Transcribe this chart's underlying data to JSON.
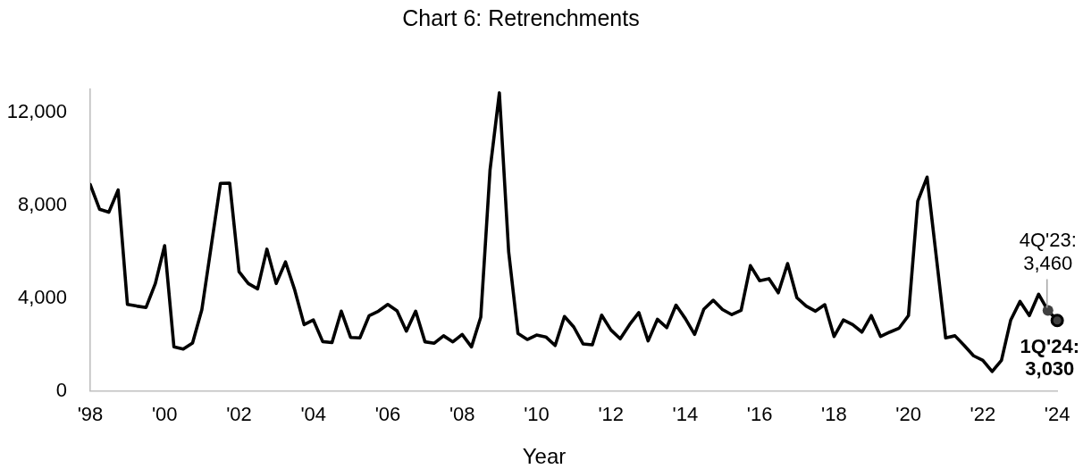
{
  "chart_data": {
    "type": "line",
    "title": "Chart 6: Retrenchments",
    "xlabel": "Year",
    "x": [
      1998,
      1998.25,
      1998.5,
      1998.75,
      1999,
      1999.25,
      1999.5,
      1999.75,
      2000,
      2000.25,
      2000.5,
      2000.75,
      2001,
      2001.25,
      2001.5,
      2001.75,
      2002,
      2002.25,
      2002.5,
      2002.75,
      2003,
      2003.25,
      2003.5,
      2003.75,
      2004,
      2004.25,
      2004.5,
      2004.75,
      2005,
      2005.25,
      2005.5,
      2005.75,
      2006,
      2006.25,
      2006.5,
      2006.75,
      2007,
      2007.25,
      2007.5,
      2007.75,
      2008,
      2008.25,
      2008.5,
      2008.75,
      2009,
      2009.25,
      2009.5,
      2009.75,
      2010,
      2010.25,
      2010.5,
      2010.75,
      2011,
      2011.25,
      2011.5,
      2011.75,
      2012,
      2012.25,
      2012.5,
      2012.75,
      2013,
      2013.25,
      2013.5,
      2013.75,
      2014,
      2014.25,
      2014.5,
      2014.75,
      2015,
      2015.25,
      2015.5,
      2015.75,
      2016,
      2016.25,
      2016.5,
      2016.75,
      2017,
      2017.25,
      2017.5,
      2017.75,
      2018,
      2018.25,
      2018.5,
      2018.75,
      2019,
      2019.25,
      2019.5,
      2019.75,
      2020,
      2020.25,
      2020.5,
      2020.75,
      2021,
      2021.25,
      2021.5,
      2021.75,
      2022,
      2022.25,
      2022.5,
      2022.75,
      2023,
      2023.25,
      2023.5,
      2023.75,
      2024
    ],
    "series": [
      {
        "color": "#000000",
        "marker": "none",
        "values": [
          8880,
          7820,
          7690,
          8650,
          3720,
          3650,
          3590,
          4620,
          6250,
          1890,
          1800,
          2060,
          3490,
          6200,
          8930,
          8940,
          5130,
          4620,
          4390,
          6100,
          4620,
          5550,
          4330,
          2850,
          3050,
          2120,
          2080,
          3430,
          2300,
          2280,
          3240,
          3430,
          3720,
          3440,
          2570,
          3430,
          2110,
          2050,
          2370,
          2110,
          2430,
          1890,
          3170,
          9520,
          12830,
          5990,
          2470,
          2210,
          2400,
          2320,
          1950,
          3200,
          2750,
          2020,
          1980,
          3260,
          2620,
          2240,
          2850,
          3370,
          2150,
          3080,
          2720,
          3690,
          3110,
          2430,
          3520,
          3900,
          3500,
          3280,
          3470,
          5390,
          4740,
          4830,
          4220,
          5480,
          4010,
          3650,
          3430,
          3710,
          2340,
          3050,
          2850,
          2530,
          3240,
          2340,
          2530,
          2700,
          3240,
          8170,
          9200,
          5750,
          2280,
          2370,
          1950,
          1510,
          1310,
          830,
          1310,
          3050,
          3850,
          3240,
          4160,
          3460,
          3030
        ]
      },
      {
        "type": "scatter",
        "marker": "circle",
        "x": [
          2023.75,
          2024
        ],
        "colors": [
          "#404040",
          "#404040"
        ],
        "values": [
          3460,
          3030
        ]
      }
    ],
    "xlim": [
      1998,
      2024
    ],
    "xticks": [
      {
        "value": 1998,
        "label": "'98"
      },
      {
        "value": 2000,
        "label": "'00"
      },
      {
        "value": 2002,
        "label": "'02"
      },
      {
        "value": 2004,
        "label": "'04"
      },
      {
        "value": 2006,
        "label": "'06"
      },
      {
        "value": 2008,
        "label": "'08"
      },
      {
        "value": 2010,
        "label": "'10"
      },
      {
        "value": 2012,
        "label": "'12"
      },
      {
        "value": 2014,
        "label": "'14"
      },
      {
        "value": 2016,
        "label": "'16"
      },
      {
        "value": 2018,
        "label": "'18"
      },
      {
        "value": 2020,
        "label": "'20"
      },
      {
        "value": 2022,
        "label": "'22"
      },
      {
        "value": 2024,
        "label": "'24"
      }
    ],
    "ylim": [
      0,
      13000
    ],
    "yticks": [
      0,
      {
        "value": 4000,
        "label": "4,000"
      },
      {
        "value": 8000,
        "label": "8,000"
      },
      {
        "value": 12000,
        "label": "12,000"
      }
    ],
    "grid": false,
    "legend": false,
    "annotations": [
      {
        "text": "4Q'23:\n3,460",
        "x": 2023.75,
        "y": 3460
      },
      {
        "text": "1Q'24:\n3,030",
        "x": 2024,
        "y": 3030
      }
    ]
  }
}
